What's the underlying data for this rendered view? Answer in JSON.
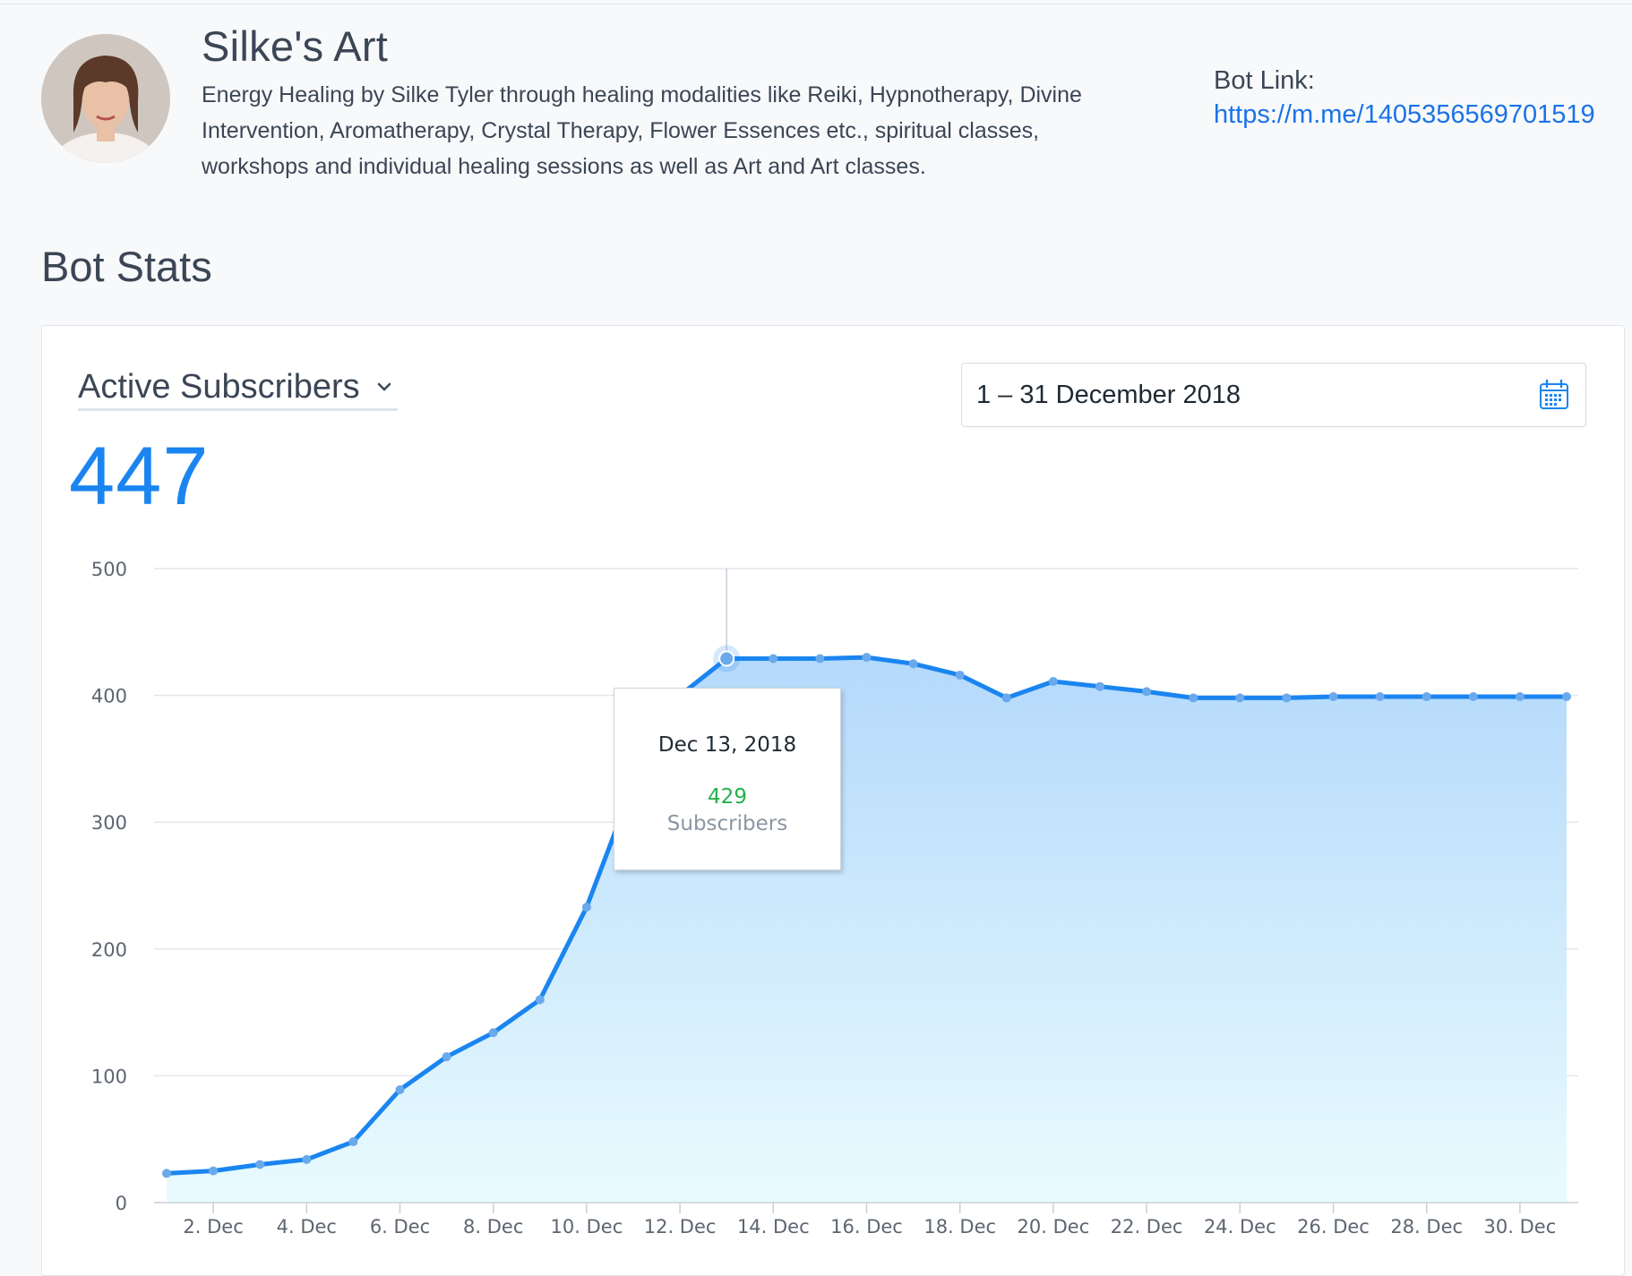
{
  "bot": {
    "name": "Silke's Art",
    "description": "Energy Healing by Silke Tyler through healing modalities like Reiki, Hypnotherapy, Divine Intervention, Aromatherapy, Crystal Therapy, Flower Essences etc., spiritual classes, workshops and individual healing sessions as well as Art and Art classes.",
    "link_label": "Bot Link:",
    "link_url": "https://m.me/1405356569701519"
  },
  "stats": {
    "section_title": "Bot Stats",
    "metric_select": {
      "selected": "Active Subscribers"
    },
    "date_range": "1 – 31 December 2018",
    "current_value": "447",
    "tooltip": {
      "date": "Dec 13, 2018",
      "value": "429",
      "label": "Subscribers"
    }
  },
  "colors": {
    "accent": "#1a85f0",
    "line": "#1a85f0",
    "positive": "#22b14c"
  },
  "chart_data": {
    "type": "area",
    "x_labels": [
      "2. Dec",
      "4. Dec",
      "6. Dec",
      "8. Dec",
      "10. Dec",
      "12. Dec",
      "14. Dec",
      "16. Dec",
      "18. Dec",
      "20. Dec",
      "22. Dec",
      "24. Dec",
      "26. Dec",
      "28. Dec",
      "30. Dec"
    ],
    "x": [
      1,
      2,
      3,
      4,
      5,
      6,
      7,
      8,
      9,
      10,
      11,
      12,
      13,
      14,
      15,
      16,
      17,
      18,
      19,
      20,
      21,
      22,
      23,
      24,
      25,
      26,
      27,
      28,
      29,
      30,
      31
    ],
    "series": [
      {
        "values": [
          23,
          25,
          30,
          34,
          48,
          89,
          115,
          134,
          160,
          233,
          330,
          400,
          429,
          429,
          429,
          430,
          425,
          416,
          398,
          411,
          407,
          403,
          398,
          398,
          398,
          399,
          399,
          399,
          399,
          399,
          399
        ]
      }
    ],
    "y_ticks": [
      "0",
      "100",
      "200",
      "300",
      "400",
      "500"
    ],
    "ylim": [
      0,
      500
    ],
    "highlight_index": 12,
    "grid": true
  }
}
